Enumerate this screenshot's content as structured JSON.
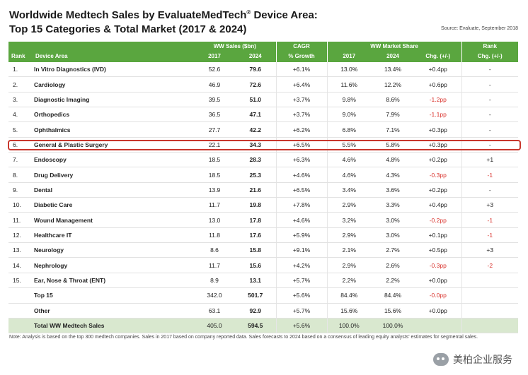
{
  "title": {
    "line1": "Worldwide Medtech Sales by EvaluateMedTech",
    "reg": "®",
    "line1_end": " Device Area:",
    "line2": "Top 15 Categories & Total Market (2017 & 2024)"
  },
  "source": "Source: Evaluate, September 2018",
  "headers": {
    "rank": "Rank",
    "device_area": "Device Area",
    "ww_sales": "WW Sales ($bn)",
    "y2017": "2017",
    "y2024": "2024",
    "cagr": "CAGR",
    "pct_growth": "% Growth",
    "ww_share": "WW Market Share",
    "s2017": "2017",
    "s2024": "2024",
    "chg": "Chg. (+/-)",
    "rank_top": "Rank",
    "rank_chg": "Chg. (+/-)"
  },
  "rows": [
    {
      "rank": "1.",
      "name": "In Vitro Diagnostics (IVD)",
      "s17": "52.6",
      "s24": "79.6",
      "cagr": "+6.1%",
      "m17": "13.0%",
      "m24": "13.4%",
      "chg": "+0.4pp",
      "rchg": "-"
    },
    {
      "rank": "2.",
      "name": "Cardiology",
      "s17": "46.9",
      "s24": "72.6",
      "cagr": "+6.4%",
      "m17": "11.6%",
      "m24": "12.2%",
      "chg": "+0.6pp",
      "rchg": "-"
    },
    {
      "rank": "3.",
      "name": "Diagnostic Imaging",
      "s17": "39.5",
      "s24": "51.0",
      "cagr": "+3.7%",
      "m17": "9.8%",
      "m24": "8.6%",
      "chg": "-1.2pp",
      "rchg": "-"
    },
    {
      "rank": "4.",
      "name": "Orthopedics",
      "s17": "36.5",
      "s24": "47.1",
      "cagr": "+3.7%",
      "m17": "9.0%",
      "m24": "7.9%",
      "chg": "-1.1pp",
      "rchg": "-"
    },
    {
      "rank": "5.",
      "name": "Ophthalmics",
      "s17": "27.7",
      "s24": "42.2",
      "cagr": "+6.2%",
      "m17": "6.8%",
      "m24": "7.1%",
      "chg": "+0.3pp",
      "rchg": "-"
    },
    {
      "rank": "6.",
      "name": "General & Plastic Surgery",
      "s17": "22.1",
      "s24": "34.3",
      "cagr": "+6.5%",
      "m17": "5.5%",
      "m24": "5.8%",
      "chg": "+0.3pp",
      "rchg": "-"
    },
    {
      "rank": "7.",
      "name": "Endoscopy",
      "s17": "18.5",
      "s24": "28.3",
      "cagr": "+6.3%",
      "m17": "4.6%",
      "m24": "4.8%",
      "chg": "+0.2pp",
      "rchg": "+1"
    },
    {
      "rank": "8.",
      "name": "Drug Delivery",
      "s17": "18.5",
      "s24": "25.3",
      "cagr": "+4.6%",
      "m17": "4.6%",
      "m24": "4.3%",
      "chg": "-0.3pp",
      "rchg": "-1"
    },
    {
      "rank": "9.",
      "name": "Dental",
      "s17": "13.9",
      "s24": "21.6",
      "cagr": "+6.5%",
      "m17": "3.4%",
      "m24": "3.6%",
      "chg": "+0.2pp",
      "rchg": "-"
    },
    {
      "rank": "10.",
      "name": "Diabetic Care",
      "s17": "11.7",
      "s24": "19.8",
      "cagr": "+7.8%",
      "m17": "2.9%",
      "m24": "3.3%",
      "chg": "+0.4pp",
      "rchg": "+3"
    },
    {
      "rank": "11.",
      "name": "Wound Management",
      "s17": "13.0",
      "s24": "17.8",
      "cagr": "+4.6%",
      "m17": "3.2%",
      "m24": "3.0%",
      "chg": "-0.2pp",
      "rchg": "-1"
    },
    {
      "rank": "12.",
      "name": "Healthcare IT",
      "s17": "11.8",
      "s24": "17.6",
      "cagr": "+5.9%",
      "m17": "2.9%",
      "m24": "3.0%",
      "chg": "+0.1pp",
      "rchg": "-1"
    },
    {
      "rank": "13.",
      "name": "Neurology",
      "s17": "8.6",
      "s24": "15.8",
      "cagr": "+9.1%",
      "m17": "2.1%",
      "m24": "2.7%",
      "chg": "+0.5pp",
      "rchg": "+3"
    },
    {
      "rank": "14.",
      "name": "Nephrology",
      "s17": "11.7",
      "s24": "15.6",
      "cagr": "+4.2%",
      "m17": "2.9%",
      "m24": "2.6%",
      "chg": "-0.3pp",
      "rchg": "-2"
    },
    {
      "rank": "15.",
      "name": "Ear, Nose & Throat (ENT)",
      "s17": "8.9",
      "s24": "13.1",
      "cagr": "+5.7%",
      "m17": "2.2%",
      "m24": "2.2%",
      "chg": "+0.0pp",
      "rchg": ""
    },
    {
      "rank": "",
      "name": "Top 15",
      "s17": "342.0",
      "s24": "501.7",
      "cagr": "+5.6%",
      "m17": "84.4%",
      "m24": "84.4%",
      "chg": "-0.0pp",
      "rchg": ""
    },
    {
      "rank": "",
      "name": "Other",
      "s17": "63.1",
      "s24": "92.9",
      "cagr": "+5.7%",
      "m17": "15.6%",
      "m24": "15.6%",
      "chg": "+0.0pp",
      "rchg": ""
    }
  ],
  "total": {
    "name": "Total WW Medtech Sales",
    "s17": "405.0",
    "s24": "594.5",
    "cagr": "+5.6%",
    "m17": "100.0%",
    "m24": "100.0%"
  },
  "note": "Note: Analysis is based on the top 300 medtech companies. Sales in 2017 based on company reported data. Sales forecasts to 2024 based on a consensus of leading equity analysts' estimates for segmental sales.",
  "watermark": "美柏企业服务",
  "colors": {
    "header_green": "#5aa63f",
    "negative": "#d9322c",
    "highlight": "#c8372d",
    "total_bg": "#d9e8cf"
  }
}
